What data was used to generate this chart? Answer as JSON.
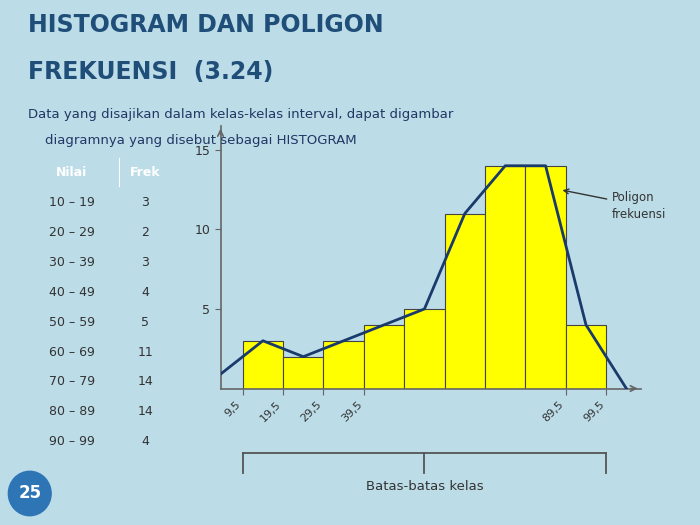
{
  "title_line1": "HISTOGRAM DAN POLIGON",
  "title_line2": "FREKUENSI  (3.24)",
  "subtitle_line1": "Data yang disajikan dalam kelas-kelas interval, dapat digambar",
  "subtitle_line2": "    diagramnya yang disebut sebagai HISTOGRAM",
  "table_header": [
    "Nilai",
    "Frek"
  ],
  "table_rows": [
    [
      "10 – 19",
      "3"
    ],
    [
      "20 – 29",
      "2"
    ],
    [
      "30 – 39",
      "3"
    ],
    [
      "40 – 49",
      "4"
    ],
    [
      "50 – 59",
      "5"
    ],
    [
      "60 – 69",
      "11"
    ],
    [
      "70 – 79",
      "14"
    ],
    [
      "80 – 89",
      "14"
    ],
    [
      "90 – 99",
      "4"
    ]
  ],
  "frequencies": [
    3,
    2,
    3,
    4,
    5,
    11,
    14,
    14,
    4
  ],
  "bin_edges": [
    9.5,
    19.5,
    29.5,
    39.5,
    49.5,
    59.5,
    69.5,
    79.5,
    89.5,
    99.5
  ],
  "midpoints": [
    14.5,
    24.5,
    34.5,
    44.5,
    54.5,
    64.5,
    74.5,
    84.5,
    94.5
  ],
  "x_tick_labels": [
    "9,5",
    "19,5",
    "29,5",
    "39,5",
    "89,5",
    "99,5"
  ],
  "x_tick_positions": [
    9.5,
    19.5,
    29.5,
    39.5,
    89.5,
    99.5
  ],
  "yticks": [
    5,
    10,
    15
  ],
  "ylim": [
    0,
    16.5
  ],
  "xlim": [
    4,
    108
  ],
  "bar_color": "#FFFF00",
  "bar_edge_color": "#444444",
  "polygon_color": "#1a3a6b",
  "bg_color": "#bcdce8",
  "table_header_bg": "#2e75b6",
  "table_header_fg": "#ffffff",
  "table_row_bg_odd": "#e8f4f8",
  "table_row_bg_even": "#ffffff",
  "annotation_text": "Poligon\nfrekuensi",
  "batas_label": "Batas-batas kelas",
  "slide_number": "25",
  "title_color": "#1f4e79",
  "subtitle_color": "#1f3864",
  "text_color": "#333333"
}
